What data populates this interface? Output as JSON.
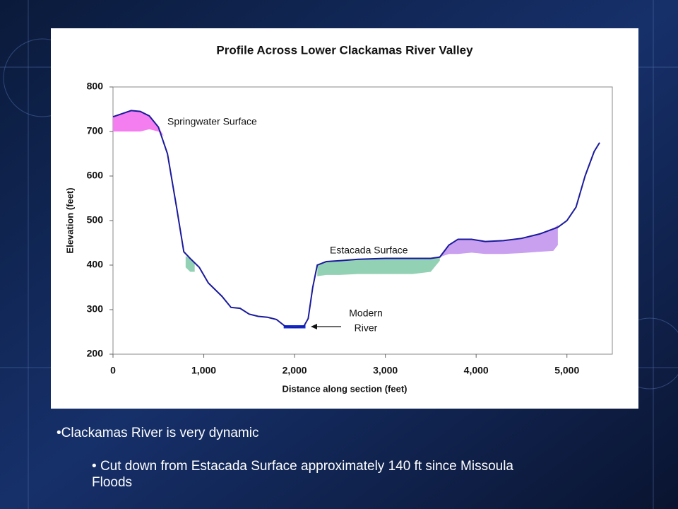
{
  "chart_data": {
    "type": "line",
    "title": "Profile Across Lower Clackamas River Valley",
    "x_label": "Distance along section (feet)",
    "y_label": "Elevation (feet)",
    "x": [
      0,
      100,
      200,
      300,
      400,
      500,
      600,
      700,
      780,
      850,
      950,
      1050,
      1200,
      1300,
      1400,
      1500,
      1600,
      1700,
      1800,
      1900,
      2000,
      2100,
      2150,
      2200,
      2250,
      2350,
      2500,
      2700,
      3000,
      3300,
      3500,
      3600,
      3700,
      3800,
      3950,
      4100,
      4300,
      4500,
      4700,
      4900,
      5000,
      5100,
      5200,
      5300,
      5360
    ],
    "values": [
      733,
      740,
      747,
      745,
      735,
      710,
      650,
      530,
      430,
      415,
      395,
      360,
      330,
      305,
      303,
      290,
      285,
      283,
      278,
      262,
      260,
      262,
      280,
      350,
      400,
      408,
      410,
      413,
      415,
      415,
      415,
      418,
      445,
      458,
      458,
      453,
      455,
      460,
      470,
      485,
      500,
      530,
      600,
      655,
      675
    ],
    "color": "#1a1a9c",
    "bands": [
      {
        "x": [
          0,
          100,
          200,
          300,
          400,
          500,
          560
        ],
        "upper": [
          733,
          740,
          747,
          745,
          735,
          710,
          690
        ],
        "lower": [
          700,
          700,
          700,
          700,
          705,
          700,
          690
        ],
        "color": "#f47ef0"
      },
      {
        "x": [
          800,
          850,
          900
        ],
        "upper": [
          420,
          415,
          405
        ],
        "lower": [
          395,
          385,
          385
        ],
        "color": "#93d1b4"
      },
      {
        "x": [
          2250,
          2350,
          2500,
          2700,
          3000,
          3300,
          3500,
          3600
        ],
        "upper": [
          400,
          408,
          410,
          413,
          415,
          415,
          415,
          418
        ],
        "lower": [
          375,
          378,
          378,
          380,
          380,
          380,
          385,
          410
        ],
        "color": "#93d1b4"
      },
      {
        "x": [
          3600,
          3700,
          3800,
          3950,
          4100,
          4300,
          4500,
          4700,
          4850,
          4900
        ],
        "upper": [
          418,
          445,
          458,
          458,
          453,
          455,
          460,
          470,
          482,
          490
        ],
        "lower": [
          418,
          425,
          425,
          428,
          425,
          425,
          427,
          430,
          432,
          445
        ],
        "color": "#c99ff0"
      },
      {
        "x": [
          1880,
          2120
        ],
        "upper": [
          265,
          265
        ],
        "lower": [
          258,
          258
        ],
        "color": "#1030e0"
      }
    ],
    "annotations": [
      "Springwater Surface",
      "Estacada Surface",
      "Modern",
      "River"
    ],
    "xlim": [
      0,
      5500
    ],
    "xticks": [
      0,
      {
        "value": 1000,
        "label": "1,000"
      },
      {
        "value": 2000,
        "label": "2,000"
      },
      {
        "value": 3000,
        "label": "3,000"
      },
      {
        "value": 4000,
        "label": "4,000"
      },
      {
        "value": 5000,
        "label": "5,000"
      }
    ],
    "ylim": [
      200,
      800
    ],
    "yticks": [
      200,
      300,
      400,
      500,
      600,
      700,
      800
    ]
  },
  "slide": {
    "bullets": [
      "Clackamas River is very dynamic",
      "Cut down from Estacada Surface approximately 140 ft since Missoula Floods"
    ]
  }
}
